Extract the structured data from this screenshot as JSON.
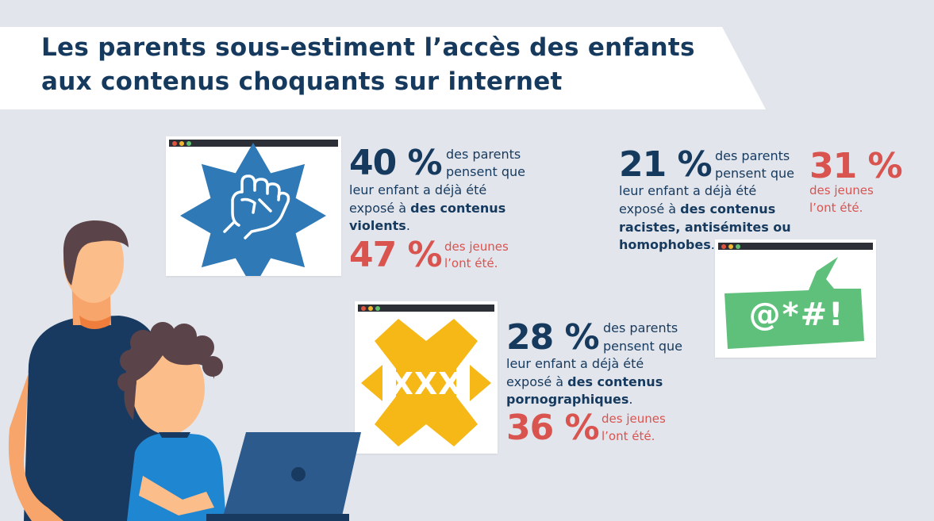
{
  "title": {
    "line1": "Les parents sous-estiment l’accès des enfants",
    "line2": "aux contenus choquants sur internet"
  },
  "violent": {
    "icon": "fist-icon",
    "parents_pct": "40 %",
    "parents_text_1": "des parents",
    "parents_text_2": "pensent que",
    "line_3": "leur enfant a déjà été",
    "line_4_pre": "exposé à ",
    "line_4_bold": "des contenus",
    "line_5_bold": "violents",
    "line_5_end": ".",
    "youth_pct": "47 %",
    "youth_text_1": "des jeunes",
    "youth_text_2": "l’ont été."
  },
  "porn": {
    "icon": "xxx-icon",
    "icon_text": "XXX",
    "parents_pct": "28 %",
    "parents_text_1": "des parents",
    "parents_text_2": "pensent que",
    "line_3": "leur enfant a déjà été",
    "line_4_pre": "exposé à ",
    "line_4_bold": "des contenus",
    "line_5_bold": "pornographiques",
    "line_5_end": ".",
    "youth_pct": "36 %",
    "youth_text_1": "des jeunes",
    "youth_text_2": "l’ont été."
  },
  "racist": {
    "icon": "speech-bubble-icon",
    "icon_text": "@*#!",
    "parents_pct": "21 %",
    "parents_text_1": "des parents",
    "parents_text_2": "pensent que",
    "line_3": "leur enfant a déjà été",
    "line_4_pre": "exposé à ",
    "line_4_bold": "des contenus",
    "line_5_bold": "racistes, antisémites ou",
    "line_6_bold": "homophobes",
    "line_6_end": ".",
    "youth_pct": "31 %",
    "youth_text_1": "des jeunes",
    "youth_text_2": "l’ont été."
  },
  "colors": {
    "navy": "#16395e",
    "red": "#d9534f",
    "blue_icon": "#2f79b6",
    "yellow_icon": "#f6b817",
    "green_icon": "#5ec07a",
    "background": "#e2e6ec"
  }
}
